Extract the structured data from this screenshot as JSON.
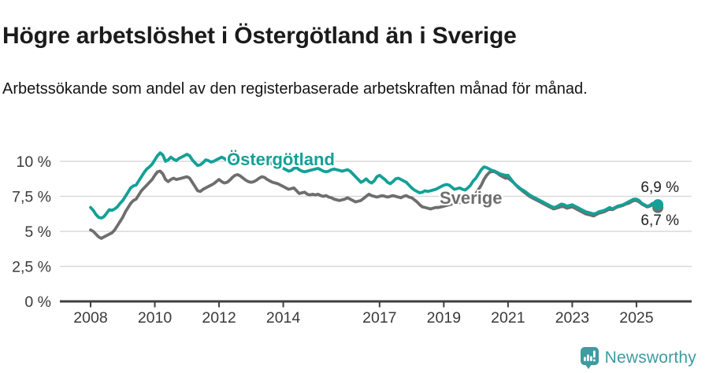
{
  "chart_data": {
    "type": "line",
    "title": "Högre arbetslöshet i Östergötland än i Sverige",
    "subtitle": "Arbetssökande som andel av den registerbaserade arbetskraften månad för månad.",
    "unit": "%",
    "grid": "horizontal",
    "x_start_year": 2008,
    "points_per_year": 12,
    "x_tick_years": [
      2008,
      2010,
      2012,
      2014,
      2017,
      2019,
      2021,
      2023,
      2025
    ],
    "x_tick_labels": [
      "2008",
      "2010",
      "2012",
      "2014",
      "2017",
      "2019",
      "2021",
      "2023",
      "2025"
    ],
    "y_ticks": [
      0,
      2.5,
      5,
      7.5,
      10
    ],
    "y_tick_labels": [
      "0 %",
      "2,5 %",
      "5 %",
      "7,5 %",
      "10 %"
    ],
    "ylim": [
      0,
      11.35
    ],
    "series": [
      {
        "name": "Sverige",
        "color": "#6e6e6e",
        "end_label": "6,7 %",
        "values": [
          5.1,
          5.0,
          4.8,
          4.6,
          4.5,
          4.6,
          4.7,
          4.8,
          4.9,
          5.1,
          5.4,
          5.7,
          6.0,
          6.4,
          6.7,
          7.0,
          7.2,
          7.3,
          7.6,
          7.9,
          8.1,
          8.3,
          8.5,
          8.7,
          9.0,
          9.25,
          9.3,
          9.1,
          8.7,
          8.55,
          8.7,
          8.8,
          8.7,
          8.75,
          8.8,
          8.85,
          8.9,
          8.8,
          8.5,
          8.2,
          7.9,
          7.85,
          8.0,
          8.1,
          8.2,
          8.3,
          8.4,
          8.55,
          8.7,
          8.55,
          8.45,
          8.5,
          8.65,
          8.85,
          9.0,
          9.05,
          8.95,
          8.8,
          8.65,
          8.55,
          8.5,
          8.55,
          8.65,
          8.8,
          8.9,
          8.85,
          8.7,
          8.6,
          8.5,
          8.45,
          8.4,
          8.3,
          8.2,
          8.1,
          8.0,
          8.05,
          8.1,
          7.9,
          7.7,
          7.75,
          7.8,
          7.65,
          7.6,
          7.65,
          7.6,
          7.65,
          7.55,
          7.5,
          7.55,
          7.45,
          7.4,
          7.3,
          7.25,
          7.2,
          7.25,
          7.3,
          7.4,
          7.3,
          7.2,
          7.1,
          7.15,
          7.2,
          7.35,
          7.5,
          7.65,
          7.55,
          7.5,
          7.45,
          7.5,
          7.55,
          7.5,
          7.45,
          7.5,
          7.55,
          7.5,
          7.45,
          7.4,
          7.5,
          7.55,
          7.45,
          7.4,
          7.25,
          7.1,
          6.9,
          6.75,
          6.7,
          6.65,
          6.6,
          6.65,
          6.7,
          6.7,
          6.75,
          6.8,
          6.85,
          6.9,
          6.95,
          7.0,
          7.0,
          7.05,
          7.1,
          7.2,
          7.3,
          7.4,
          7.5,
          7.7,
          8.0,
          8.3,
          8.7,
          9.0,
          9.2,
          9.3,
          9.25,
          9.15,
          9.0,
          8.9,
          8.8,
          8.8,
          8.65,
          8.5,
          8.3,
          8.1,
          7.95,
          7.8,
          7.65,
          7.5,
          7.4,
          7.3,
          7.2,
          7.1,
          7.0,
          6.9,
          6.8,
          6.7,
          6.6,
          6.65,
          6.7,
          6.8,
          6.75,
          6.65,
          6.7,
          6.75,
          6.65,
          6.55,
          6.45,
          6.35,
          6.25,
          6.2,
          6.15,
          6.1,
          6.2,
          6.3,
          6.35,
          6.4,
          6.5,
          6.6,
          6.55,
          6.65,
          6.75,
          6.8,
          6.85,
          6.95,
          7.0,
          7.1,
          7.2,
          7.2,
          7.1,
          6.95,
          6.85,
          6.75,
          6.8,
          6.9,
          6.75,
          6.7
        ]
      },
      {
        "name": "Östergötland",
        "color": "#14a096",
        "end_label": "6,9 %",
        "values": [
          6.7,
          6.5,
          6.2,
          6.0,
          5.95,
          6.05,
          6.3,
          6.55,
          6.5,
          6.6,
          6.75,
          7.0,
          7.2,
          7.5,
          7.8,
          8.1,
          8.25,
          8.3,
          8.6,
          8.9,
          9.2,
          9.45,
          9.6,
          9.8,
          10.1,
          10.4,
          10.6,
          10.45,
          10.0,
          10.1,
          10.3,
          10.15,
          10.05,
          10.2,
          10.3,
          10.4,
          10.5,
          10.4,
          10.1,
          9.9,
          9.7,
          9.75,
          9.9,
          10.1,
          10.05,
          9.95,
          10.0,
          10.1,
          10.2,
          10.3,
          10.2,
          10.05,
          9.95,
          10.0,
          10.1,
          10.15,
          10.05,
          10.0,
          10.05,
          10.1,
          10.05,
          10.0,
          9.9,
          9.8,
          9.7,
          9.75,
          9.85,
          9.9,
          9.8,
          9.7,
          9.65,
          9.6,
          9.5,
          9.4,
          9.3,
          9.35,
          9.5,
          9.55,
          9.4,
          9.3,
          9.25,
          9.3,
          9.35,
          9.4,
          9.45,
          9.5,
          9.4,
          9.3,
          9.25,
          9.3,
          9.4,
          9.45,
          9.4,
          9.35,
          9.3,
          9.35,
          9.4,
          9.3,
          9.1,
          8.9,
          8.7,
          8.5,
          8.6,
          8.75,
          8.55,
          8.45,
          8.6,
          8.9,
          9.0,
          8.85,
          8.7,
          8.5,
          8.4,
          8.55,
          8.75,
          8.8,
          8.7,
          8.6,
          8.5,
          8.3,
          8.1,
          7.95,
          7.85,
          7.75,
          7.8,
          7.9,
          7.85,
          7.9,
          7.95,
          8.0,
          8.1,
          8.2,
          8.3,
          8.35,
          8.3,
          8.15,
          8.0,
          8.05,
          8.1,
          8.0,
          7.95,
          8.1,
          8.3,
          8.6,
          8.8,
          9.1,
          9.4,
          9.6,
          9.55,
          9.45,
          9.35,
          9.3,
          9.2,
          9.1,
          9.05,
          9.0,
          9.0,
          8.75,
          8.5,
          8.3,
          8.15,
          8.0,
          7.9,
          7.75,
          7.6,
          7.5,
          7.4,
          7.3,
          7.2,
          7.1,
          7.0,
          6.9,
          6.8,
          6.7,
          6.75,
          6.85,
          6.95,
          6.9,
          6.8,
          6.85,
          6.9,
          6.8,
          6.7,
          6.6,
          6.5,
          6.4,
          6.35,
          6.3,
          6.25,
          6.3,
          6.4,
          6.45,
          6.5,
          6.6,
          6.7,
          6.6,
          6.7,
          6.8,
          6.85,
          6.9,
          7.0,
          7.1,
          7.2,
          7.3,
          7.3,
          7.2,
          7.0,
          6.9,
          6.8,
          6.85,
          7.0,
          6.85,
          6.9
        ]
      }
    ]
  },
  "footer": {
    "brand": "Newsworthy",
    "brand_color": "#3e9ba0",
    "icon": "speech-bubble-bar-chart-icon"
  }
}
